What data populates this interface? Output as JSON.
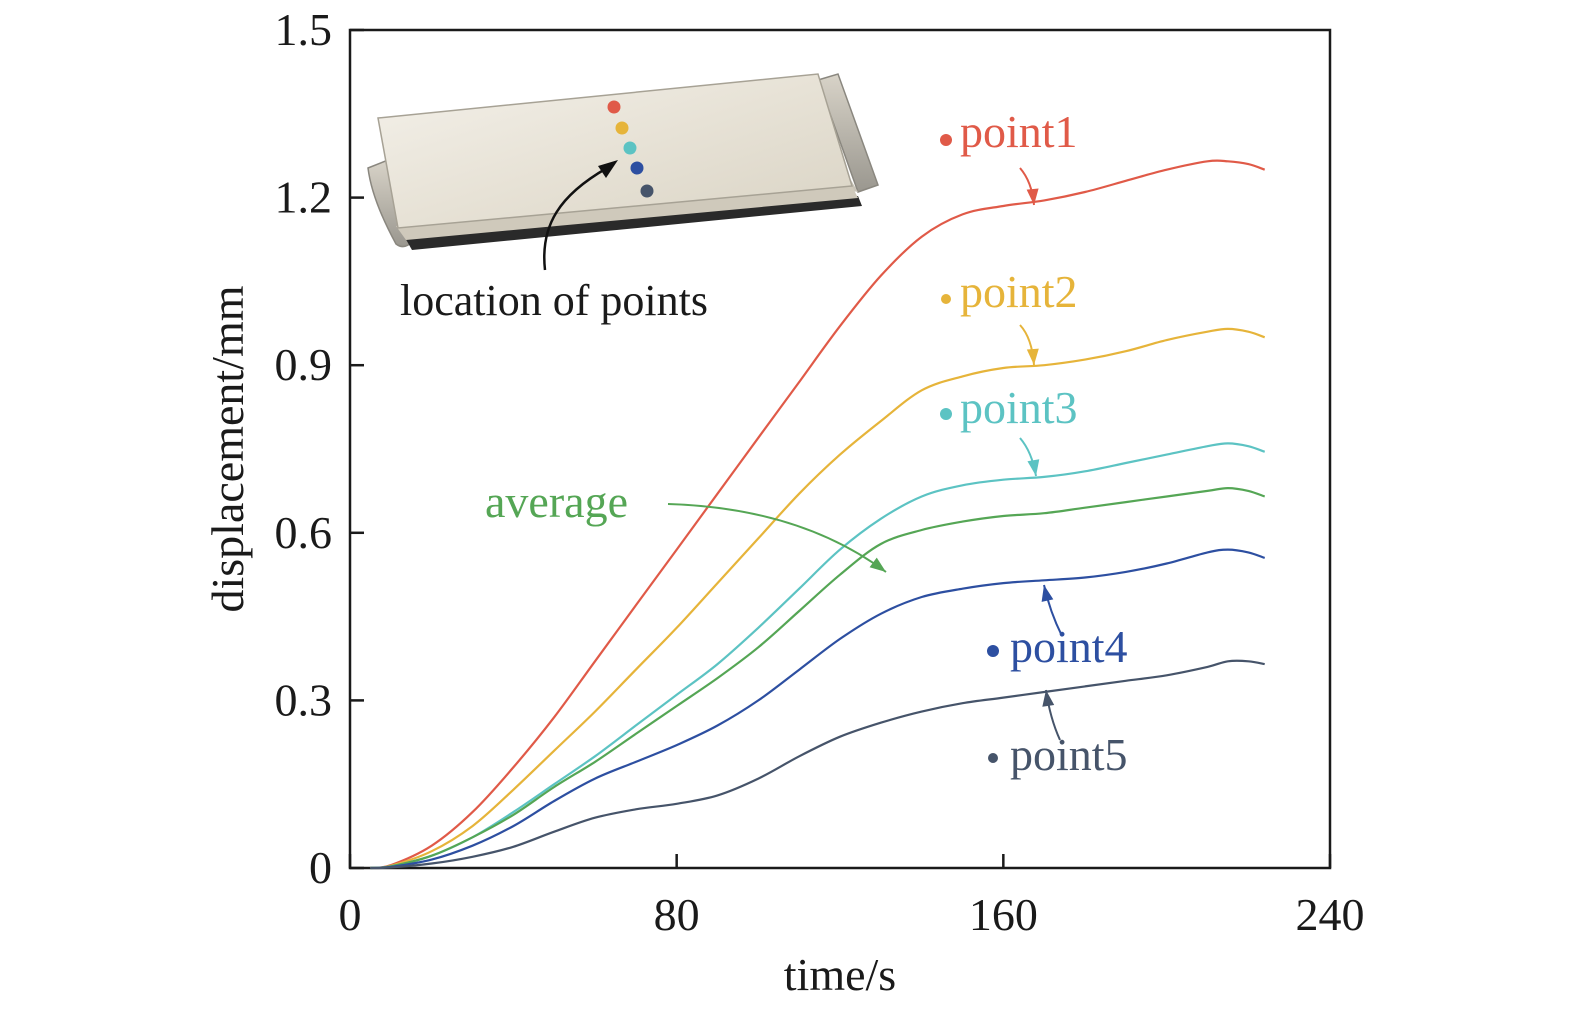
{
  "chart_data": {
    "type": "line",
    "xlabel": "time/s",
    "ylabel": "displacement/mm",
    "xlim": [
      0,
      240
    ],
    "ylim": [
      0,
      1.5
    ],
    "xticks": [
      0,
      80,
      160,
      240
    ],
    "xtick_labels": [
      "0",
      "80",
      "160",
      "240"
    ],
    "yticks": [
      0,
      0.3,
      0.6,
      0.9,
      1.2,
      1.5
    ],
    "ytick_labels": [
      "0",
      "0.3",
      "0.6",
      "0.9",
      "1.2",
      "1.5"
    ],
    "grid": false,
    "legend": "inline labels with arrows",
    "x": [
      5,
      10,
      20,
      30,
      40,
      50,
      60,
      70,
      80,
      90,
      100,
      110,
      120,
      130,
      140,
      150,
      160,
      170,
      180,
      190,
      200,
      210,
      215,
      220,
      224
    ],
    "series": [
      {
        "name": "point1",
        "color": "#e05a48",
        "values": [
          0,
          0.005,
          0.04,
          0.1,
          0.18,
          0.27,
          0.37,
          0.47,
          0.57,
          0.67,
          0.77,
          0.87,
          0.97,
          1.06,
          1.13,
          1.17,
          1.185,
          1.195,
          1.21,
          1.23,
          1.25,
          1.265,
          1.265,
          1.26,
          1.25
        ]
      },
      {
        "name": "point2",
        "color": "#e6b43a",
        "values": [
          0,
          0.004,
          0.03,
          0.075,
          0.14,
          0.21,
          0.28,
          0.355,
          0.43,
          0.51,
          0.59,
          0.67,
          0.74,
          0.8,
          0.855,
          0.88,
          0.895,
          0.9,
          0.91,
          0.925,
          0.945,
          0.96,
          0.965,
          0.96,
          0.95
        ]
      },
      {
        "name": "point3",
        "color": "#5cc3c3",
        "values": [
          0,
          0.003,
          0.022,
          0.055,
          0.1,
          0.15,
          0.2,
          0.255,
          0.31,
          0.365,
          0.43,
          0.5,
          0.57,
          0.625,
          0.665,
          0.685,
          0.695,
          0.7,
          0.71,
          0.725,
          0.74,
          0.755,
          0.76,
          0.755,
          0.745
        ]
      },
      {
        "name": "average",
        "color": "#55a655",
        "values": [
          0,
          0.003,
          0.022,
          0.055,
          0.095,
          0.145,
          0.19,
          0.24,
          0.29,
          0.34,
          0.395,
          0.46,
          0.525,
          0.58,
          0.605,
          0.62,
          0.63,
          0.635,
          0.645,
          0.655,
          0.665,
          0.675,
          0.68,
          0.675,
          0.665
        ]
      },
      {
        "name": "point4",
        "color": "#2d4fa1",
        "values": [
          0,
          0.002,
          0.015,
          0.04,
          0.075,
          0.12,
          0.16,
          0.19,
          0.22,
          0.255,
          0.3,
          0.355,
          0.41,
          0.455,
          0.485,
          0.5,
          0.51,
          0.515,
          0.52,
          0.53,
          0.545,
          0.565,
          0.57,
          0.565,
          0.555
        ]
      },
      {
        "name": "point5",
        "color": "#46546a",
        "values": [
          0,
          0.001,
          0.008,
          0.02,
          0.038,
          0.065,
          0.09,
          0.105,
          0.115,
          0.13,
          0.16,
          0.2,
          0.235,
          0.26,
          0.28,
          0.295,
          0.305,
          0.315,
          0.325,
          0.335,
          0.345,
          0.36,
          0.37,
          0.37,
          0.365
        ]
      }
    ],
    "annotations": [
      {
        "text": "point1",
        "color": "#e05a48"
      },
      {
        "text": "point2",
        "color": "#e6b43a"
      },
      {
        "text": "point3",
        "color": "#5cc3c3"
      },
      {
        "text": "average",
        "color": "#55a655"
      },
      {
        "text": "point4",
        "color": "#2d4fa1"
      },
      {
        "text": "point5",
        "color": "#46546a"
      }
    ],
    "inset": {
      "label": "location of points",
      "point_colors": [
        "#e05a48",
        "#e6b43a",
        "#5cc3c3",
        "#2d4fa1",
        "#46546a"
      ]
    }
  }
}
